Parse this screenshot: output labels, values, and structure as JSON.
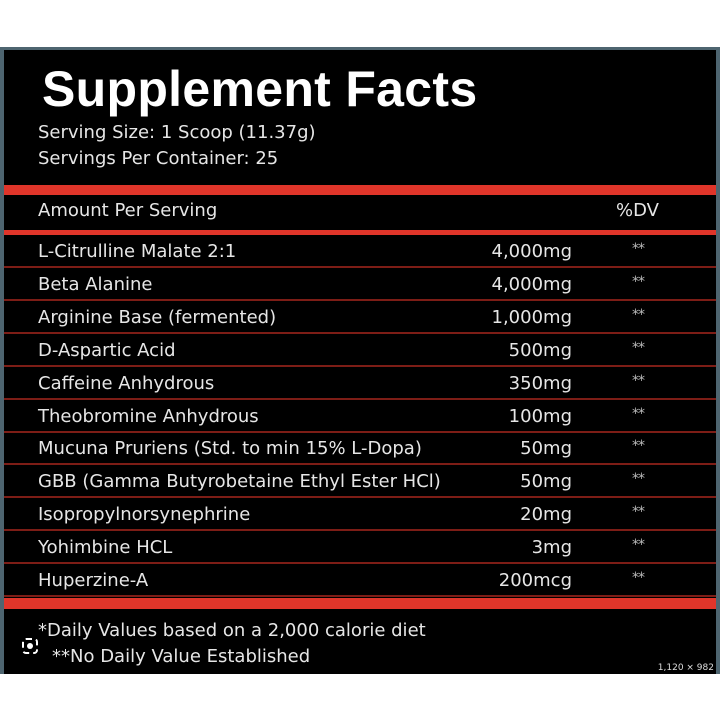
{
  "title": "Supplement Facts",
  "serving_size": "Serving Size: 1 Scoop (11.37g)",
  "servings_per_container": "Servings Per Container: 25",
  "header": {
    "amount": "Amount Per Serving",
    "dv": "%DV"
  },
  "ingredients": [
    {
      "name": "L-Citrulline Malate 2:1",
      "amount": "4,000mg",
      "dv": "**"
    },
    {
      "name": "Beta Alanine",
      "amount": "4,000mg",
      "dv": "**"
    },
    {
      "name": "Arginine Base (fermented)",
      "amount": "1,000mg",
      "dv": "**"
    },
    {
      "name": "D-Aspartic Acid",
      "amount": "500mg",
      "dv": "**"
    },
    {
      "name": "Caffeine Anhydrous",
      "amount": "350mg",
      "dv": "**"
    },
    {
      "name": "Theobromine Anhydrous",
      "amount": "100mg",
      "dv": "**"
    },
    {
      "name": "Mucuna Pruriens (Std. to min 15% L-Dopa)",
      "amount": "50mg",
      "dv": "**"
    },
    {
      "name": "GBB (Gamma Butyrobetaine Ethyl Ester HCl)",
      "amount": "50mg",
      "dv": "**"
    },
    {
      "name": "Isopropylnorsynephrine",
      "amount": "20mg",
      "dv": "**"
    },
    {
      "name": "Yohimbine HCL",
      "amount": "3mg",
      "dv": "**"
    },
    {
      "name": "Huperzine-A",
      "amount": "200mcg",
      "dv": "**"
    }
  ],
  "footnotes": [
    "*Daily Values based on a 2,000 calorie diet",
    "**No Daily Value Established"
  ],
  "image_dimensions": "1,120 × 982",
  "colors": {
    "accent": "#e0352a",
    "background": "#000000",
    "border": "#4e6570"
  }
}
